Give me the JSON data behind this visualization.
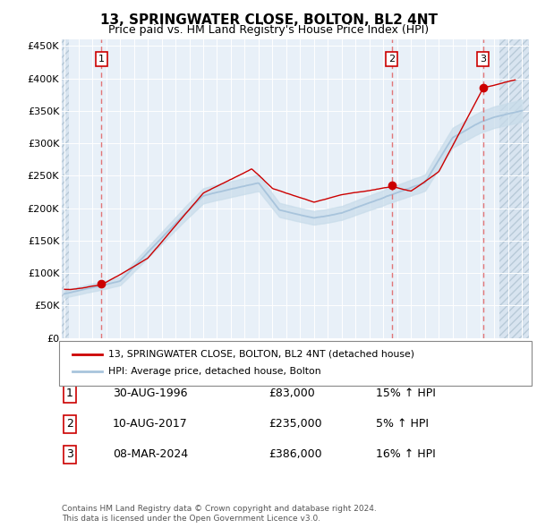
{
  "title": "13, SPRINGWATER CLOSE, BOLTON, BL2 4NT",
  "subtitle": "Price paid vs. HM Land Registry's House Price Index (HPI)",
  "legend_line1": "13, SPRINGWATER CLOSE, BOLTON, BL2 4NT (detached house)",
  "legend_line2": "HPI: Average price, detached house, Bolton",
  "footer1": "Contains HM Land Registry data © Crown copyright and database right 2024.",
  "footer2": "This data is licensed under the Open Government Licence v3.0.",
  "transactions": [
    {
      "num": 1,
      "date": "30-AUG-1996",
      "price": "£83,000",
      "pct": "15% ↑ HPI",
      "year": 1996.66,
      "price_val": 83000
    },
    {
      "num": 2,
      "date": "10-AUG-2017",
      "price": "£235,000",
      "pct": "5% ↑ HPI",
      "year": 2017.61,
      "price_val": 235000
    },
    {
      "num": 3,
      "date": "08-MAR-2024",
      "price": "£386,000",
      "pct": "16% ↑ HPI",
      "year": 2024.18,
      "price_val": 386000
    }
  ],
  "hpi_color": "#a8c4dc",
  "hpi_fill_color": "#c8dcea",
  "price_color": "#cc0000",
  "dashed_color": "#e06060",
  "bg_color": "#e8f0f8",
  "hatch_color": "#d8e4f0",
  "grid_color": "#ffffff",
  "ylim": [
    0,
    460000
  ],
  "xlim_start": 1993.8,
  "xlim_end": 2027.5,
  "yticks": [
    0,
    50000,
    100000,
    150000,
    200000,
    250000,
    300000,
    350000,
    400000,
    450000
  ],
  "xticks": [
    1994,
    1995,
    1996,
    1997,
    1998,
    1999,
    2000,
    2001,
    2002,
    2003,
    2004,
    2005,
    2006,
    2007,
    2008,
    2009,
    2010,
    2011,
    2012,
    2013,
    2014,
    2015,
    2016,
    2017,
    2018,
    2019,
    2020,
    2021,
    2022,
    2023,
    2024,
    2025,
    2026,
    2027
  ]
}
